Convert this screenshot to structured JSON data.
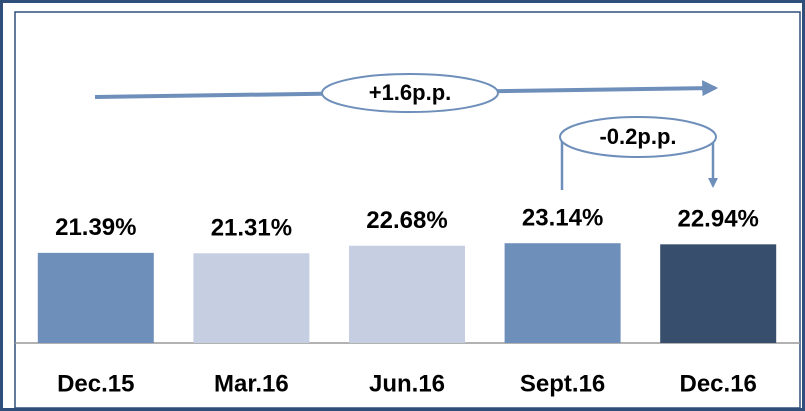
{
  "chart_data": {
    "type": "bar",
    "categories": [
      "Dec.15",
      "Mar.16",
      "Jun.16",
      "Sept.16",
      "Dec.16"
    ],
    "values": [
      21.39,
      21.31,
      22.68,
      23.14,
      22.94
    ],
    "value_labels": [
      "21.39%",
      "21.31%",
      "22.68%",
      "23.14%",
      "22.94%"
    ],
    "colors": [
      "#6f8fbb",
      "#c5cfe1",
      "#c5cfe1",
      "#6f8fbb",
      "#384e6d"
    ],
    "ylim": [
      5,
      25
    ],
    "annotations": [
      "+1.6p.p.",
      "-0.2p.p."
    ]
  }
}
